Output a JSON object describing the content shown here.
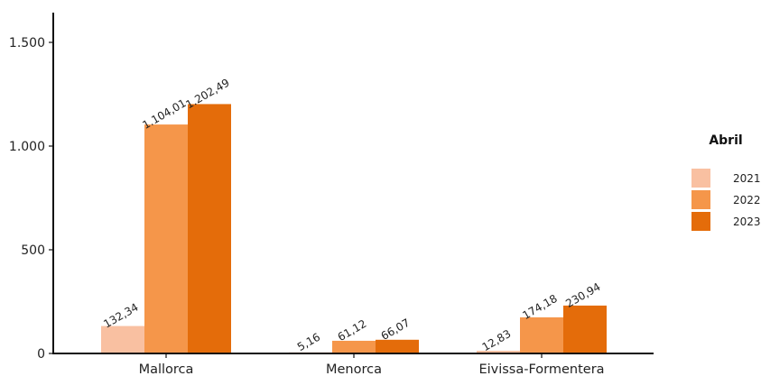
{
  "chart_data": {
    "type": "bar",
    "categories": [
      "Mallorca",
      "Menorca",
      "Eivissa-Formentera"
    ],
    "series": [
      {
        "name": "2021",
        "values": [
          132.34,
          5.16,
          12.83
        ],
        "labels": [
          "132,34",
          "5,16",
          "12,83"
        ],
        "color": "#f9c0a1"
      },
      {
        "name": "2022",
        "values": [
          1104.01,
          61.12,
          174.18
        ],
        "labels": [
          "1.104,01",
          "61,12",
          "174,18"
        ],
        "color": "#f5964a"
      },
      {
        "name": "2023",
        "values": [
          1202.49,
          66.07,
          230.94
        ],
        "labels": [
          "1.202,49",
          "66,07",
          "230,94"
        ],
        "color": "#e46c0a"
      }
    ],
    "yticks": [
      0,
      500,
      1000,
      1500
    ],
    "ytick_labels": [
      "0",
      "500",
      "1.000",
      "1.500"
    ],
    "ylim": [
      0,
      1650
    ],
    "xlabel": "",
    "ylabel": "",
    "legend": {
      "title": "Abril",
      "position": "right"
    },
    "grid": false
  }
}
